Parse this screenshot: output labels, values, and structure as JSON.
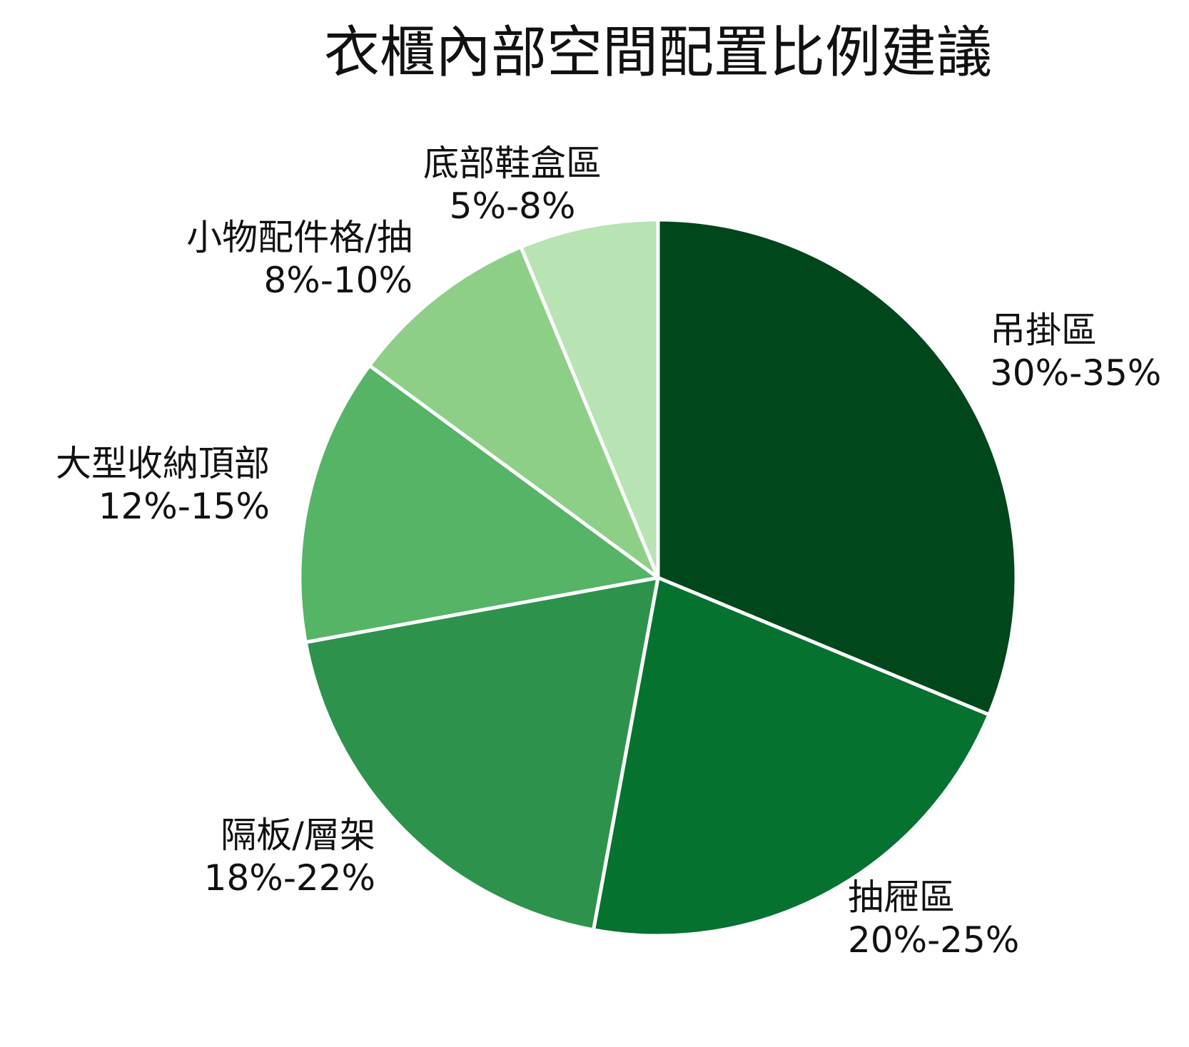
{
  "chart_data": {
    "type": "pie",
    "title": "衣櫃內部空間配置比例建議",
    "start_angle_deg": 0,
    "direction": "clockwise",
    "legend": "none",
    "slices": [
      {
        "name": "吊掛區",
        "range": "30%-35%",
        "value": 32.5,
        "color": "#00471b"
      },
      {
        "name": "抽屜區",
        "range": "20%-25%",
        "value": 22.5,
        "color": "#067230"
      },
      {
        "name": "隔板/層架",
        "range": "18%-22%",
        "value": 20,
        "color": "#2d934c"
      },
      {
        "name": "大型收納頂部",
        "range": "12%-15%",
        "value": 13.5,
        "color": "#55b466"
      },
      {
        "name": "小物配件格/抽",
        "range": "8%-10%",
        "value": 9,
        "color": "#8ecf88"
      },
      {
        "name": "底部鞋盒區",
        "range": "5%-8%",
        "value": 6.5,
        "color": "#b8e3b3"
      }
    ]
  }
}
